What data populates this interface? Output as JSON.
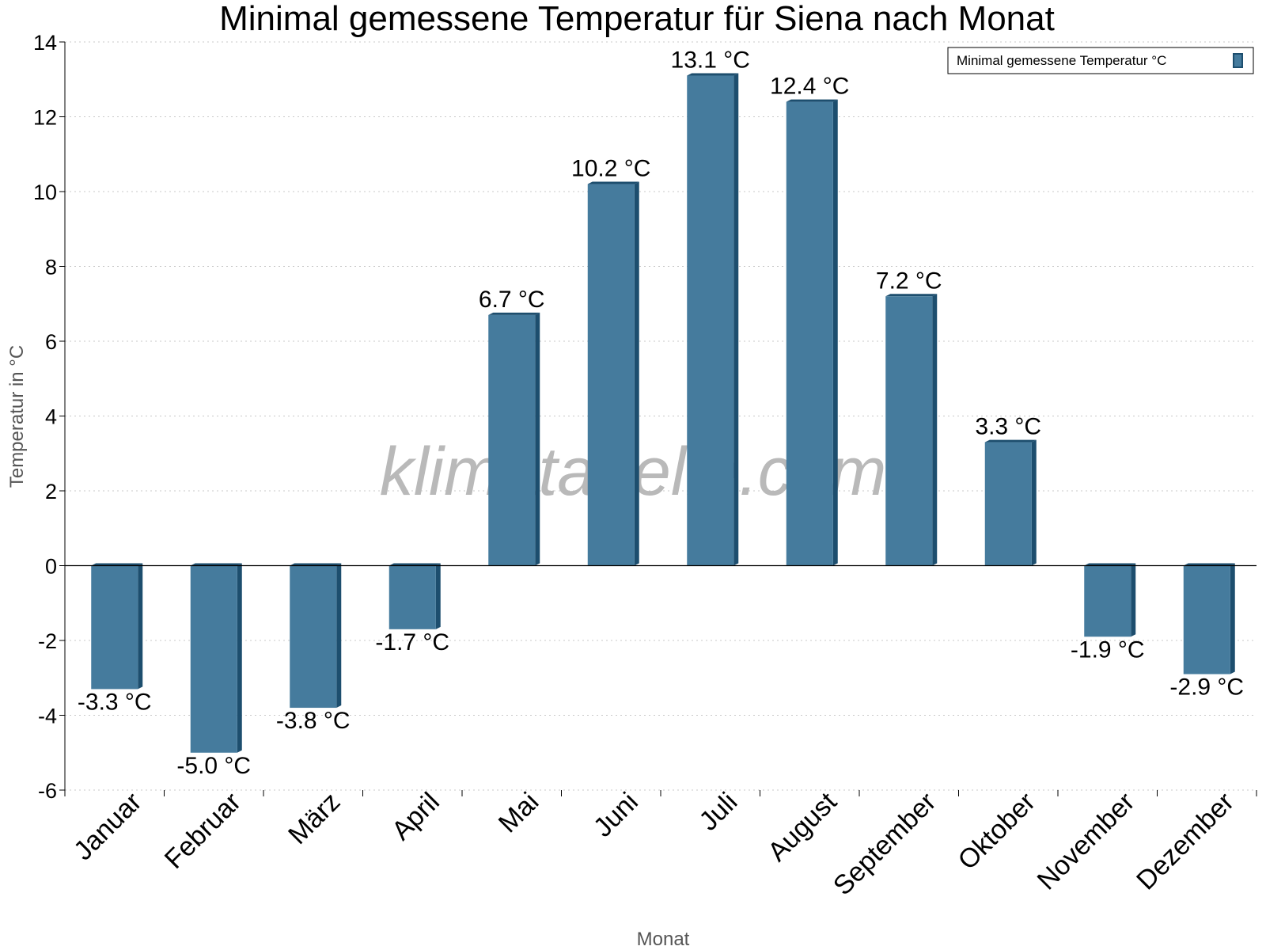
{
  "chart_data": {
    "type": "bar",
    "title": "Minimal gemessene Temperatur für Siena nach Monat",
    "xlabel": "Monat",
    "ylabel": "Temperatur in °C",
    "ylim": [
      -6,
      14
    ],
    "yticks": [
      -6,
      -4,
      -2,
      0,
      2,
      4,
      6,
      8,
      10,
      12,
      14
    ],
    "grid": true,
    "legend_position": "top-right",
    "categories": [
      "Januar",
      "Februar",
      "März",
      "April",
      "Mai",
      "Juni",
      "Juli",
      "August",
      "September",
      "Oktober",
      "November",
      "Dezember"
    ],
    "series": [
      {
        "name": "Minimal gemessene Temperatur °C",
        "values": [
          -3.3,
          -5.0,
          -3.8,
          -1.7,
          6.7,
          10.2,
          13.1,
          12.4,
          7.2,
          3.3,
          -1.9,
          -2.9
        ],
        "labels": [
          "-3.3 °C",
          "-5.0 °C",
          "-3.8 °C",
          "-1.7 °C",
          "6.7 °C",
          "10.2 °C",
          "13.1 °C",
          "12.4 °C",
          "7.2 °C",
          "3.3 °C",
          "-1.9 °C",
          "-2.9 °C"
        ],
        "color": "#457b9d",
        "shade_color": "#1d4e6e"
      }
    ],
    "watermark": "klimatabelle.com"
  }
}
